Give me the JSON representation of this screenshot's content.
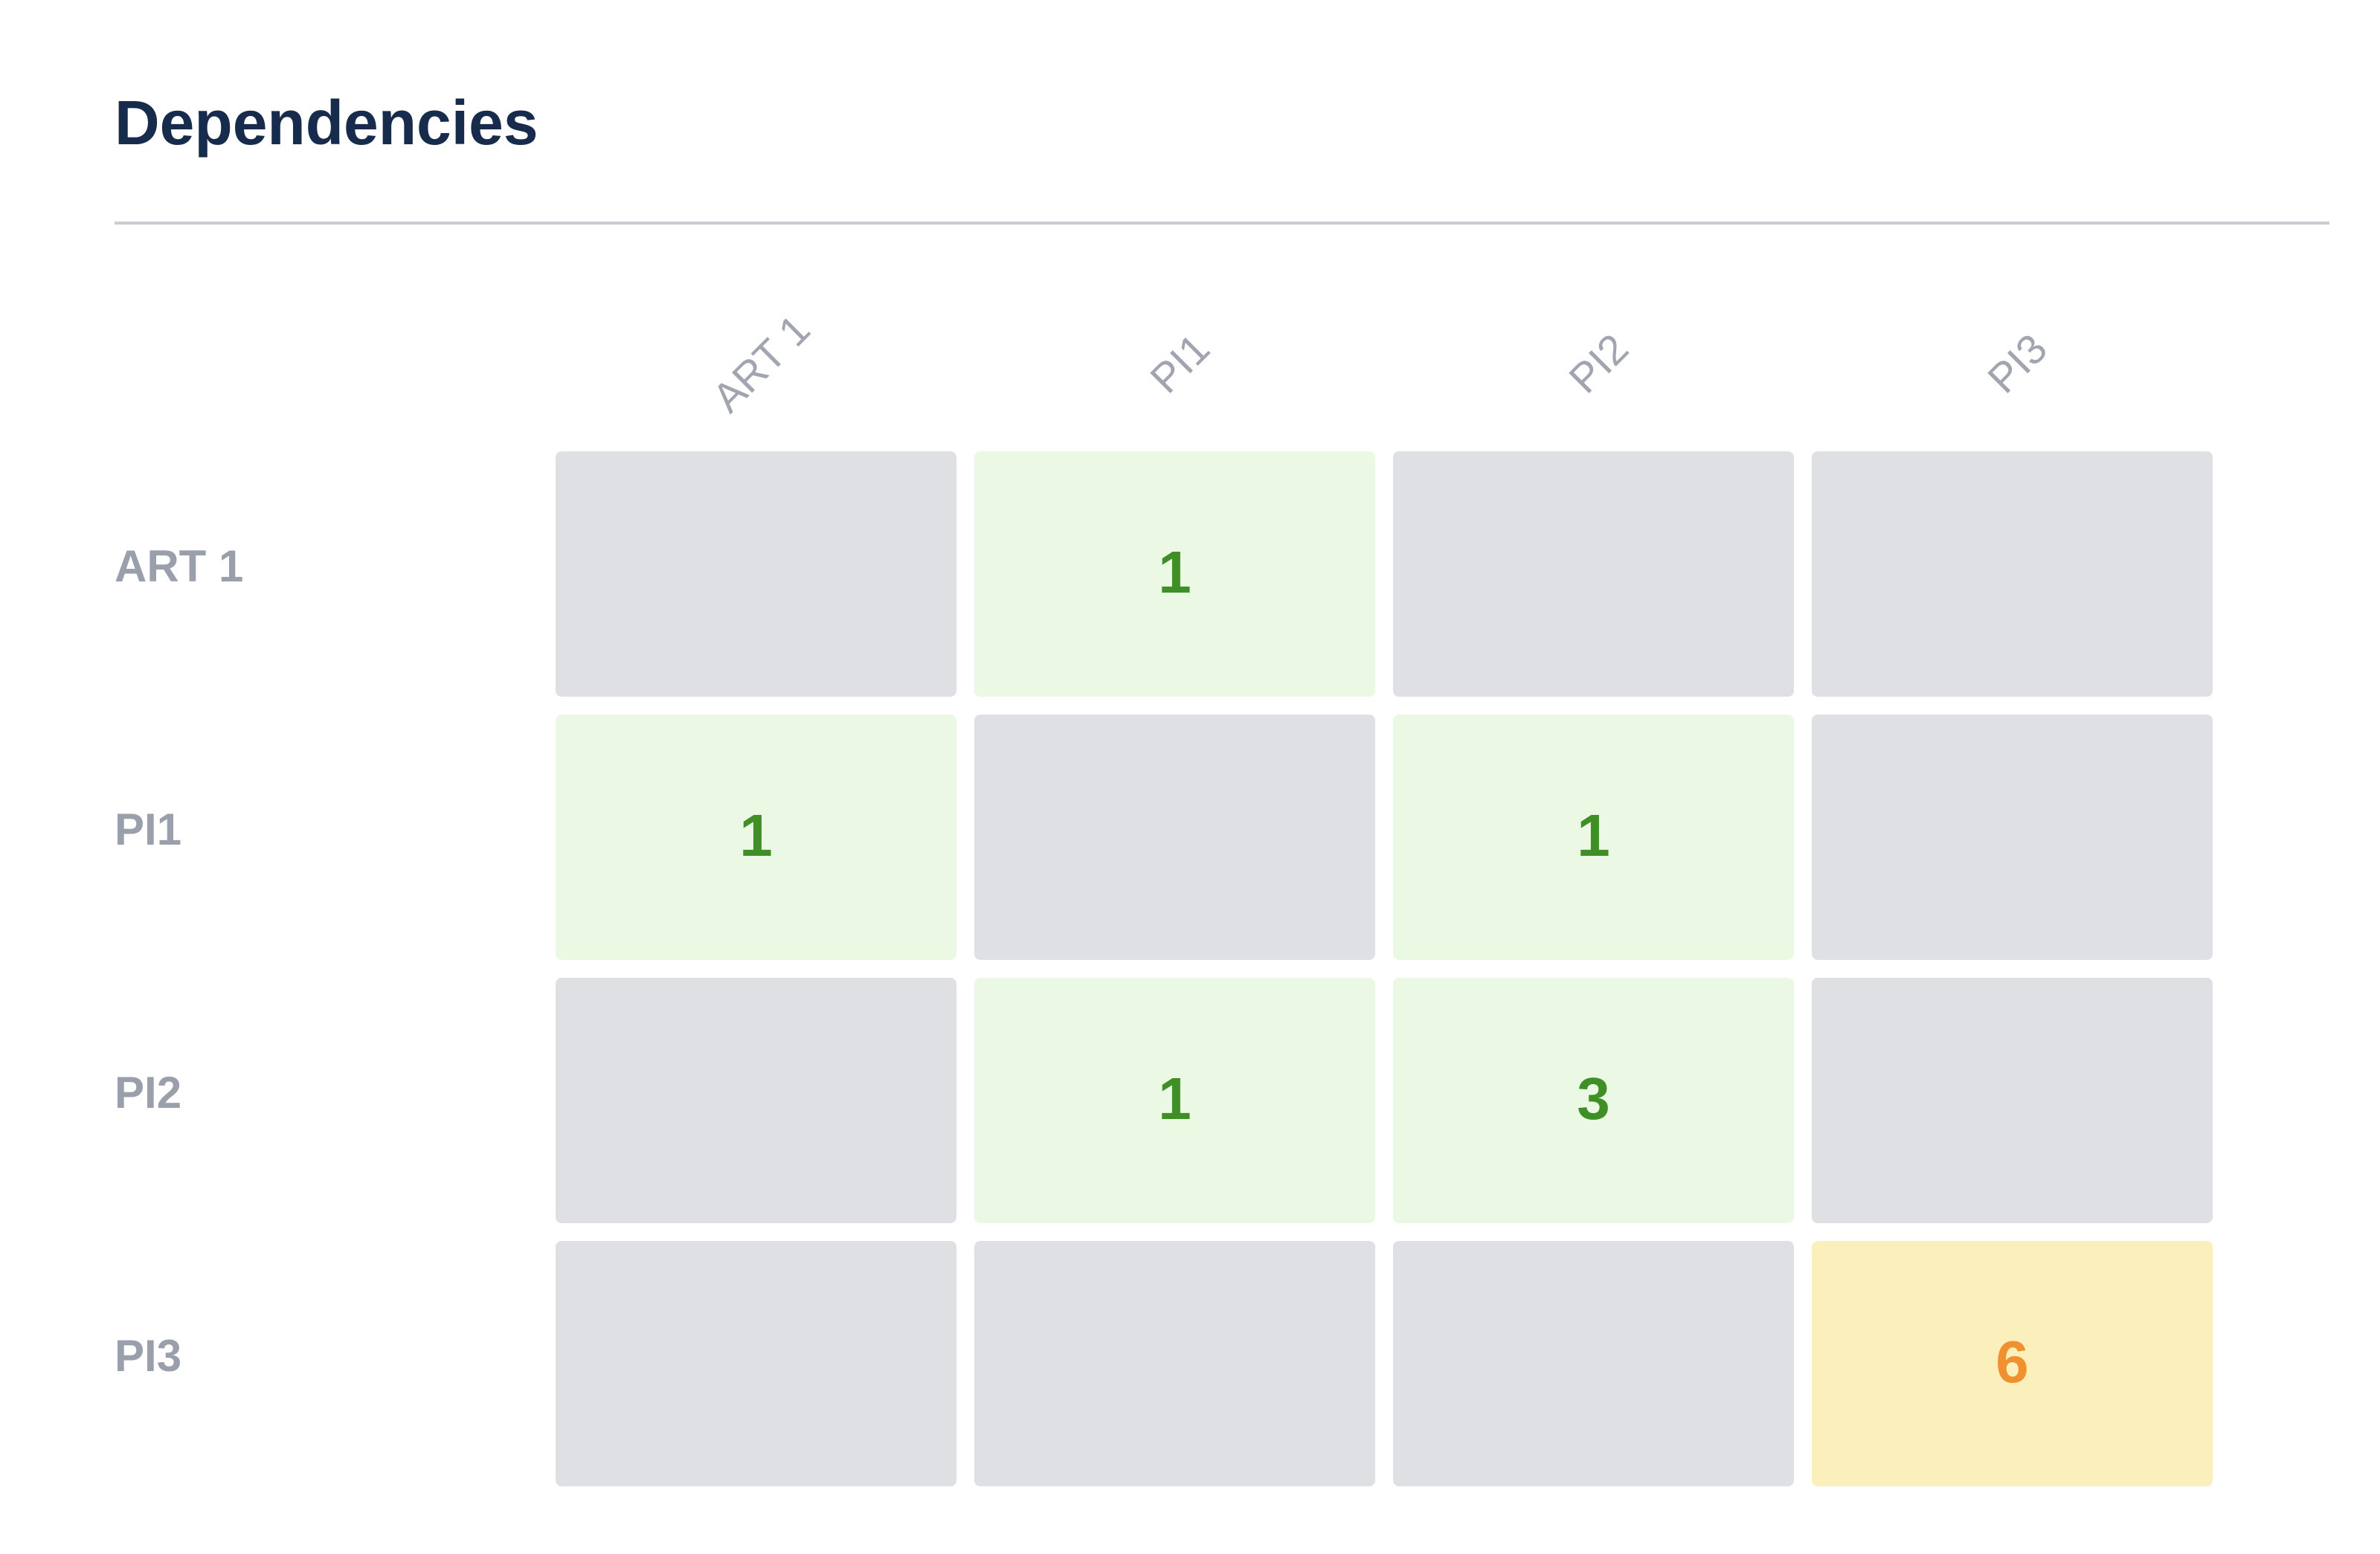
{
  "header": {
    "title": "Dependencies"
  },
  "table": {
    "columns": [
      "ART 1",
      "PI1",
      "PI2",
      "PI3"
    ],
    "rows": [
      {
        "label": "ART 1",
        "cells": [
          {
            "value": null,
            "color": "#dfe0e4"
          },
          {
            "value": 1,
            "color": "#ebf8e3",
            "text_color": "#3f8f26"
          },
          {
            "value": null,
            "color": "#dfe0e4"
          },
          {
            "value": null,
            "color": "#dfe0e4"
          }
        ]
      },
      {
        "label": "PI1",
        "cells": [
          {
            "value": 1,
            "color": "#ebf8e3",
            "text_color": "#3f8f26"
          },
          {
            "value": null,
            "color": "#dfe0e4"
          },
          {
            "value": 1,
            "color": "#ebf8e3",
            "text_color": "#3f8f26"
          },
          {
            "value": null,
            "color": "#dfe0e4"
          }
        ]
      },
      {
        "label": "PI2",
        "cells": [
          {
            "value": null,
            "color": "#dfe0e4"
          },
          {
            "value": 1,
            "color": "#ebf8e3",
            "text_color": "#3f8f26"
          },
          {
            "value": 3,
            "color": "#ebf8e3",
            "text_color": "#3f8f26"
          },
          {
            "value": null,
            "color": "#dfe0e4"
          }
        ]
      },
      {
        "label": "PI3",
        "cells": [
          {
            "value": null,
            "color": "#dfe0e4"
          },
          {
            "value": null,
            "color": "#dfe0e4"
          },
          {
            "value": null,
            "color": "#dfe0e4"
          },
          {
            "value": 6,
            "color": "#fbefbb",
            "text_color": "#f0902f"
          }
        ]
      }
    ]
  }
}
